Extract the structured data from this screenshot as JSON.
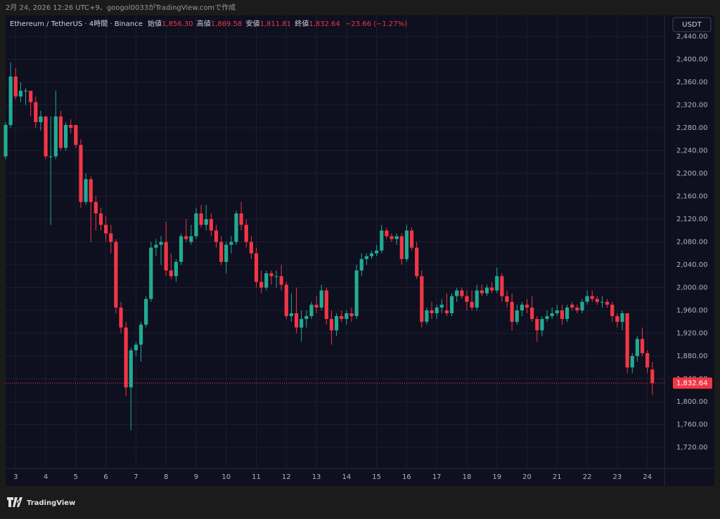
{
  "caption": "2月 24, 2026 12:26 UTC+9、googol0033がTradingView.comで作成",
  "chart_data": {
    "type": "candlestick",
    "symbol": "Ethereum / TetherUS · 4時間 · Binance",
    "ohlc_labels": [
      "始値",
      "高値",
      "安値",
      "終値"
    ],
    "ohlc_values": [
      "1,856.30",
      "1,869.58",
      "1,811.81",
      "1,832.64"
    ],
    "change": "−23.66 (−1.27%)",
    "currency": "USDT",
    "up_color": "#22ab94",
    "down_color": "#f23645",
    "grid": true,
    "ylim": [
      1683,
      2477
    ],
    "yticks": [
      {
        "value": 1720,
        "label": "1,720.00"
      },
      {
        "value": 1760,
        "label": "1,760.00"
      },
      {
        "value": 1800,
        "label": "1,800.00"
      },
      {
        "value": 1840,
        "label": "1,840.00"
      },
      {
        "value": 1880,
        "label": "1,880.00"
      },
      {
        "value": 1920,
        "label": "1,920.00"
      },
      {
        "value": 1960,
        "label": "1,960.00"
      },
      {
        "value": 2000,
        "label": "2,000.00"
      },
      {
        "value": 2040,
        "label": "2,040.00"
      },
      {
        "value": 2080,
        "label": "2,080.00"
      },
      {
        "value": 2120,
        "label": "2,120.00"
      },
      {
        "value": 2160,
        "label": "2,160.00"
      },
      {
        "value": 2200,
        "label": "2,200.00"
      },
      {
        "value": 2240,
        "label": "2,240.00"
      },
      {
        "value": 2280,
        "label": "2,280.00"
      },
      {
        "value": 2320,
        "label": "2,320.00"
      },
      {
        "value": 2360,
        "label": "2,360.00"
      },
      {
        "value": 2400,
        "label": "2,400.00"
      },
      {
        "value": 2440,
        "label": "2,440.00"
      }
    ],
    "last_price": {
      "value": 1832.64,
      "label": "1,832.64"
    },
    "x": [
      null,
      null,
      "3",
      null,
      null,
      null,
      null,
      null,
      "4",
      null,
      null,
      null,
      null,
      null,
      "5",
      null,
      null,
      null,
      null,
      null,
      "6",
      null,
      null,
      null,
      null,
      null,
      "7",
      null,
      null,
      null,
      null,
      null,
      "8",
      null,
      null,
      null,
      null,
      null,
      "9",
      null,
      null,
      null,
      null,
      null,
      "10",
      null,
      null,
      null,
      null,
      null,
      "11",
      null,
      null,
      null,
      null,
      null,
      "12",
      null,
      null,
      null,
      null,
      null,
      "13",
      null,
      null,
      null,
      null,
      null,
      "14",
      null,
      null,
      null,
      null,
      null,
      "15",
      null,
      null,
      null,
      null,
      null,
      "16",
      null,
      null,
      null,
      null,
      null,
      "17",
      null,
      null,
      null,
      null,
      null,
      "18",
      null,
      null,
      null,
      null,
      null,
      "19",
      null,
      null,
      null,
      null,
      null,
      "20",
      null,
      null,
      null,
      null,
      null,
      "21",
      null,
      null,
      null,
      null,
      null,
      "22",
      null,
      null,
      null,
      null,
      null,
      "23",
      null,
      null,
      null,
      null,
      null,
      "24",
      null
    ],
    "candles": [
      [
        2230,
        2290,
        2225,
        2285
      ],
      [
        2285,
        2395,
        2280,
        2370
      ],
      [
        2370,
        2385,
        2330,
        2335
      ],
      [
        2335,
        2360,
        2325,
        2345
      ],
      [
        2345,
        2350,
        2320,
        2345
      ],
      [
        2345,
        2345,
        2300,
        2325
      ],
      [
        2325,
        2335,
        2280,
        2290
      ],
      [
        2290,
        2310,
        2275,
        2300
      ],
      [
        2300,
        2300,
        2225,
        2230
      ],
      [
        2230,
        2300,
        2110,
        2230
      ],
      [
        2230,
        2345,
        2225,
        2300
      ],
      [
        2300,
        2310,
        2240,
        2245
      ],
      [
        2245,
        2290,
        2240,
        2285
      ],
      [
        2285,
        2295,
        2270,
        2280
      ],
      [
        2285,
        2285,
        2245,
        2250
      ],
      [
        2250,
        2260,
        2140,
        2150
      ],
      [
        2150,
        2200,
        2145,
        2190
      ],
      [
        2190,
        2195,
        2080,
        2150
      ],
      [
        2150,
        2160,
        2100,
        2130
      ],
      [
        2130,
        2140,
        2100,
        2110
      ],
      [
        2110,
        2125,
        2080,
        2095
      ],
      [
        2095,
        2110,
        2060,
        2080
      ],
      [
        2080,
        2085,
        1955,
        1965
      ],
      [
        1965,
        1975,
        1920,
        1930
      ],
      [
        1930,
        1940,
        1810,
        1825
      ],
      [
        1825,
        1895,
        1750,
        1890
      ],
      [
        1890,
        1905,
        1880,
        1900
      ],
      [
        1900,
        1940,
        1870,
        1935
      ],
      [
        1935,
        1985,
        1930,
        1980
      ],
      [
        1980,
        2080,
        1975,
        2070
      ],
      [
        2070,
        2085,
        2055,
        2075
      ],
      [
        2075,
        2090,
        2040,
        2080
      ],
      [
        2080,
        2115,
        2020,
        2030
      ],
      [
        2030,
        2060,
        2015,
        2020
      ],
      [
        2020,
        2050,
        2010,
        2045
      ],
      [
        2045,
        2095,
        2040,
        2090
      ],
      [
        2090,
        2120,
        2080,
        2085
      ],
      [
        2080,
        2110,
        2075,
        2090
      ],
      [
        2090,
        2140,
        2085,
        2130
      ],
      [
        2130,
        2145,
        2105,
        2110
      ],
      [
        2110,
        2145,
        2100,
        2120
      ],
      [
        2120,
        2130,
        2090,
        2100
      ],
      [
        2100,
        2110,
        2070,
        2080
      ],
      [
        2080,
        2090,
        2040,
        2045
      ],
      [
        2045,
        2080,
        2025,
        2075
      ],
      [
        2075,
        2090,
        2060,
        2080
      ],
      [
        2080,
        2135,
        2075,
        2130
      ],
      [
        2130,
        2150,
        2100,
        2110
      ],
      [
        2110,
        2120,
        2070,
        2080
      ],
      [
        2080,
        2090,
        2050,
        2060
      ],
      [
        2060,
        2070,
        2000,
        2010
      ],
      [
        2010,
        2030,
        1990,
        2000
      ],
      [
        2000,
        2030,
        1995,
        2025
      ],
      [
        2025,
        2030,
        2005,
        2020
      ],
      [
        2020,
        2030,
        2000,
        2020
      ],
      [
        2020,
        2040,
        1995,
        2005
      ],
      [
        2005,
        2010,
        1945,
        1950
      ],
      [
        1950,
        1990,
        1940,
        1955
      ],
      [
        1955,
        2000,
        1920,
        1930
      ],
      [
        1930,
        1960,
        1905,
        1945
      ],
      [
        1945,
        1960,
        1930,
        1950
      ],
      [
        1950,
        1975,
        1945,
        1970
      ],
      [
        1970,
        1985,
        1955,
        1965
      ],
      [
        1965,
        2005,
        1960,
        1995
      ],
      [
        1995,
        2000,
        1935,
        1945
      ],
      [
        1945,
        1960,
        1900,
        1925
      ],
      [
        1925,
        1955,
        1915,
        1950
      ],
      [
        1950,
        1960,
        1940,
        1945
      ],
      [
        1945,
        1960,
        1935,
        1955
      ],
      [
        1955,
        1965,
        1940,
        1950
      ],
      [
        1950,
        2040,
        1945,
        2030
      ],
      [
        2030,
        2060,
        2020,
        2050
      ],
      [
        2050,
        2060,
        2040,
        2055
      ],
      [
        2055,
        2065,
        2050,
        2060
      ],
      [
        2060,
        2075,
        2055,
        2065
      ],
      [
        2065,
        2110,
        2060,
        2100
      ],
      [
        2100,
        2105,
        2085,
        2090
      ],
      [
        2090,
        2095,
        2080,
        2085
      ],
      [
        2085,
        2095,
        2075,
        2090
      ],
      [
        2090,
        2095,
        2040,
        2050
      ],
      [
        2050,
        2110,
        2045,
        2100
      ],
      [
        2100,
        2105,
        2065,
        2070
      ],
      [
        2070,
        2080,
        2015,
        2020
      ],
      [
        2020,
        2030,
        1930,
        1940
      ],
      [
        1940,
        1965,
        1935,
        1960
      ],
      [
        1960,
        1975,
        1945,
        1955
      ],
      [
        1955,
        1970,
        1945,
        1965
      ],
      [
        1965,
        1980,
        1955,
        1970
      ],
      [
        1960,
        1990,
        1950,
        1955
      ],
      [
        1955,
        1990,
        1950,
        1985
      ],
      [
        1985,
        2000,
        1975,
        1995
      ],
      [
        1995,
        2000,
        1980,
        1985
      ],
      [
        1985,
        1995,
        1960,
        1975
      ],
      [
        1975,
        1995,
        1960,
        1965
      ],
      [
        1965,
        2005,
        1960,
        1995
      ],
      [
        1995,
        2005,
        1985,
        1990
      ],
      [
        1990,
        2005,
        1985,
        2000
      ],
      [
        2000,
        2010,
        1990,
        1995
      ],
      [
        1995,
        2035,
        1990,
        2020
      ],
      [
        2020,
        2025,
        1975,
        1985
      ],
      [
        1985,
        1995,
        1965,
        1975
      ],
      [
        1975,
        1990,
        1925,
        1940
      ],
      [
        1940,
        1970,
        1935,
        1960
      ],
      [
        1960,
        1975,
        1950,
        1970
      ],
      [
        1970,
        1980,
        1955,
        1965
      ],
      [
        1965,
        1985,
        1940,
        1945
      ],
      [
        1945,
        1950,
        1905,
        1925
      ],
      [
        1925,
        1950,
        1915,
        1945
      ],
      [
        1945,
        1960,
        1940,
        1950
      ],
      [
        1950,
        1965,
        1945,
        1955
      ],
      [
        1955,
        1970,
        1950,
        1960
      ],
      [
        1960,
        1970,
        1935,
        1945
      ],
      [
        1945,
        1970,
        1940,
        1965
      ],
      [
        1970,
        1975,
        1960,
        1965
      ],
      [
        1965,
        1970,
        1955,
        1960
      ],
      [
        1960,
        1980,
        1955,
        1975
      ],
      [
        1975,
        1995,
        1970,
        1985
      ],
      [
        1985,
        1995,
        1975,
        1980
      ],
      [
        1980,
        1985,
        1970,
        1975
      ],
      [
        1975,
        1985,
        1965,
        1975
      ],
      [
        1975,
        1980,
        1965,
        1970
      ],
      [
        1970,
        1975,
        1940,
        1950
      ],
      [
        1950,
        1955,
        1930,
        1940
      ],
      [
        1940,
        1960,
        1925,
        1955
      ],
      [
        1955,
        1955,
        1850,
        1860
      ],
      [
        1860,
        1885,
        1850,
        1880
      ],
      [
        1880,
        1915,
        1870,
        1910
      ],
      [
        1910,
        1930,
        1880,
        1885
      ],
      [
        1885,
        1890,
        1850,
        1860
      ],
      [
        1856.3,
        1869.58,
        1811.81,
        1832.64
      ]
    ]
  },
  "footer": {
    "brand": "TradingView"
  }
}
